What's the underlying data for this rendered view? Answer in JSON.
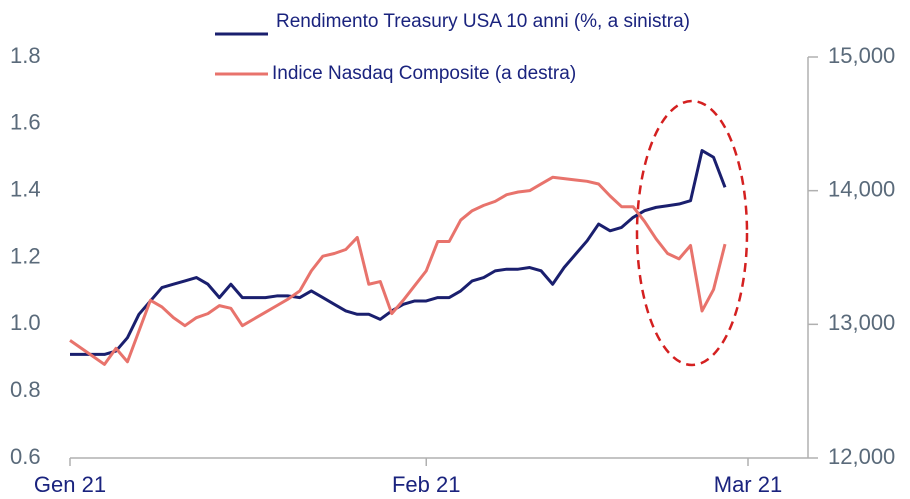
{
  "chart_data": {
    "type": "line",
    "categories": [
      "Gen 21",
      null,
      null,
      null,
      null,
      null,
      null,
      null,
      null,
      null,
      null,
      null,
      null,
      null,
      null,
      null,
      null,
      null,
      null,
      null,
      null,
      null,
      null,
      null,
      null,
      null,
      null,
      null,
      null,
      null,
      null,
      "Feb 21",
      null,
      null,
      null,
      null,
      null,
      null,
      null,
      null,
      null,
      null,
      null,
      null,
      null,
      null,
      null,
      null,
      null,
      null,
      null,
      null,
      null,
      null,
      null,
      null,
      null,
      null,
      null,
      "Mar 21"
    ],
    "series": [
      {
        "name": "Rendimento Treasury USA 10 anni (%, a sinistra)",
        "color": "#1a1f6e",
        "axis": "y",
        "values": [
          0.91,
          0.91,
          0.91,
          0.91,
          0.92,
          0.96,
          1.03,
          1.07,
          1.11,
          1.12,
          1.13,
          1.14,
          1.12,
          1.08,
          1.12,
          1.08,
          1.08,
          1.08,
          1.085,
          1.085,
          1.08,
          1.1,
          1.08,
          1.06,
          1.04,
          1.03,
          1.03,
          1.015,
          1.04,
          1.06,
          1.07,
          1.07,
          1.08,
          1.08,
          1.1,
          1.13,
          1.14,
          1.16,
          1.165,
          1.165,
          1.17,
          1.16,
          1.12,
          1.17,
          1.21,
          1.25,
          1.3,
          1.28,
          1.29,
          1.32,
          1.34,
          1.35,
          1.355,
          1.36,
          1.37,
          1.52,
          1.5,
          1.41,
          null,
          null
        ]
      },
      {
        "name": "Indice Nasdaq Composite (a destra)",
        "color": "#e8736c",
        "axis": "y2",
        "values": [
          12880,
          12820,
          12760,
          12700,
          12820,
          12720,
          12950,
          13180,
          13130,
          13050,
          12990,
          13050,
          13080,
          13140,
          13120,
          12990,
          13040,
          13090,
          13140,
          13190,
          13250,
          13400,
          13510,
          13530,
          13560,
          13650,
          13300,
          13320,
          13080,
          13180,
          13290,
          13400,
          13620,
          13620,
          13780,
          13850,
          13890,
          13920,
          13970,
          13990,
          14000,
          14050,
          14100,
          14090,
          14080,
          14070,
          14050,
          13960,
          13880,
          13880,
          13770,
          13640,
          13530,
          13490,
          13590,
          13100,
          13260,
          13600,
          null,
          null
        ]
      }
    ],
    "ylim": [
      0.6,
      1.8
    ],
    "yticks": [
      {
        "value": 0.6,
        "label": "0.6"
      },
      {
        "value": 0.8,
        "label": "0.8"
      },
      {
        "value": 1.0,
        "label": "1.0"
      },
      {
        "value": 1.2,
        "label": "1.2"
      },
      {
        "value": 1.4,
        "label": "1.4"
      },
      {
        "value": 1.6,
        "label": "1.6"
      },
      {
        "value": 1.8,
        "label": "1.8"
      }
    ],
    "y2lim": [
      12000,
      15000
    ],
    "y2ticks": [
      {
        "value": 12000,
        "label": "12,000"
      },
      {
        "value": 13000,
        "label": "13,000"
      },
      {
        "value": 14000,
        "label": "14,000"
      },
      {
        "value": 15000,
        "label": "15,000"
      }
    ]
  }
}
